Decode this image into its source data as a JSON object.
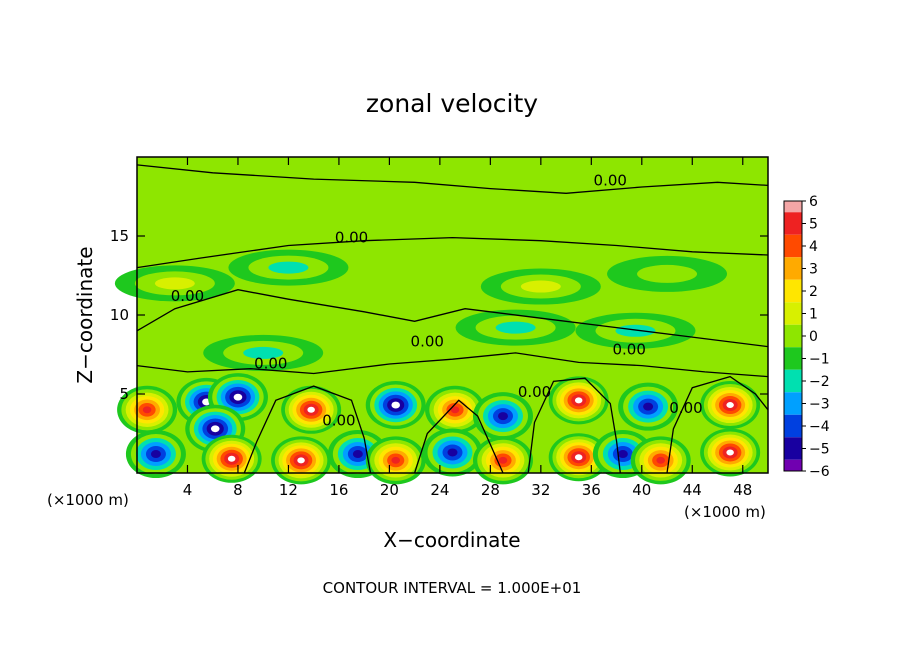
{
  "chart_data": {
    "type": "heatmap",
    "title": "zonal velocity",
    "xlabel": "X−coordinate",
    "ylabel": "Z−coordinate",
    "x_unit_left": "(×1000 m)",
    "x_unit_right": "(×1000 m)",
    "footer": "CONTOUR INTERVAL = 1.000E+01",
    "xlim": [
      0,
      50
    ],
    "ylim": [
      0,
      20
    ],
    "x_ticks": [
      4,
      8,
      12,
      16,
      20,
      24,
      28,
      32,
      36,
      40,
      44,
      48
    ],
    "x_tick_labels": [
      "4",
      "8",
      "12",
      "16",
      "20",
      "24",
      "28",
      "32",
      "36",
      "40",
      "44",
      "48"
    ],
    "y_ticks": [
      5,
      10,
      15
    ],
    "y_tick_labels": [
      "5",
      "10",
      "15"
    ],
    "colorbar": {
      "min": -6,
      "max": 6,
      "labels": [
        "6",
        "5",
        "4",
        "3",
        "2",
        "1",
        "0",
        "−1",
        "−2",
        "−3",
        "−4",
        "−5",
        "−6"
      ],
      "colors": [
        "#f4a6a6",
        "#ee2222",
        "#ff4a00",
        "#ffaa00",
        "#ffe600",
        "#d8f000",
        "#8ee600",
        "#1ec81e",
        "#00e0b0",
        "#00a0ff",
        "#0040e0",
        "#1800a0",
        "#7000b0"
      ]
    },
    "contour_labels": [
      {
        "text": "0.00",
        "x": 37.5,
        "z": 18.2
      },
      {
        "text": "0.00",
        "x": 17.0,
        "z": 14.6
      },
      {
        "text": "0.00",
        "x": 4.0,
        "z": 10.9
      },
      {
        "text": "0.00",
        "x": 23.0,
        "z": 8.0
      },
      {
        "text": "0.00",
        "x": 39.0,
        "z": 7.5
      },
      {
        "text": "0.00",
        "x": 10.6,
        "z": 6.6
      },
      {
        "text": "0.00",
        "x": 16.0,
        "z": 3.0
      },
      {
        "text": "0.00",
        "x": 31.5,
        "z": 4.8
      },
      {
        "text": "0.00",
        "x": 43.5,
        "z": 3.8
      }
    ],
    "blobs": [
      {
        "x": 0.8,
        "z": 4.0,
        "v": 5
      },
      {
        "x": 5.5,
        "z": 4.5,
        "v": -5
      },
      {
        "x": 8.0,
        "z": 4.8,
        "v": -5
      },
      {
        "x": 6.2,
        "z": 2.8,
        "v": -5
      },
      {
        "x": 13.8,
        "z": 4.0,
        "v": 6
      },
      {
        "x": 20.5,
        "z": 4.3,
        "v": -5
      },
      {
        "x": 25.2,
        "z": 4.0,
        "v": 5
      },
      {
        "x": 29.0,
        "z": 3.6,
        "v": -4
      },
      {
        "x": 35.0,
        "z": 4.6,
        "v": 6
      },
      {
        "x": 40.5,
        "z": 4.2,
        "v": -4
      },
      {
        "x": 47.0,
        "z": 4.3,
        "v": 6
      },
      {
        "x": 1.5,
        "z": 1.2,
        "v": -4
      },
      {
        "x": 7.5,
        "z": 0.9,
        "v": 6
      },
      {
        "x": 13.0,
        "z": 0.8,
        "v": 6
      },
      {
        "x": 17.5,
        "z": 1.2,
        "v": -4
      },
      {
        "x": 20.5,
        "z": 0.8,
        "v": 5
      },
      {
        "x": 25.0,
        "z": 1.3,
        "v": -4
      },
      {
        "x": 29.0,
        "z": 0.8,
        "v": 5
      },
      {
        "x": 35.0,
        "z": 1.0,
        "v": 6
      },
      {
        "x": 38.5,
        "z": 1.2,
        "v": -4
      },
      {
        "x": 41.5,
        "z": 0.8,
        "v": 5
      },
      {
        "x": 47.0,
        "z": 1.3,
        "v": 6
      },
      {
        "x": 10.0,
        "z": 7.6,
        "v": -1.6
      },
      {
        "x": 30.0,
        "z": 9.2,
        "v": -1.8
      },
      {
        "x": 39.5,
        "z": 9.0,
        "v": -1.4
      },
      {
        "x": 12.0,
        "z": 13.0,
        "v": -1.4
      },
      {
        "x": 32.0,
        "z": 11.8,
        "v": 1.6
      },
      {
        "x": 42.0,
        "z": 12.6,
        "v": 1.0
      },
      {
        "x": 3.0,
        "z": 12.0,
        "v": 1.2
      }
    ]
  }
}
